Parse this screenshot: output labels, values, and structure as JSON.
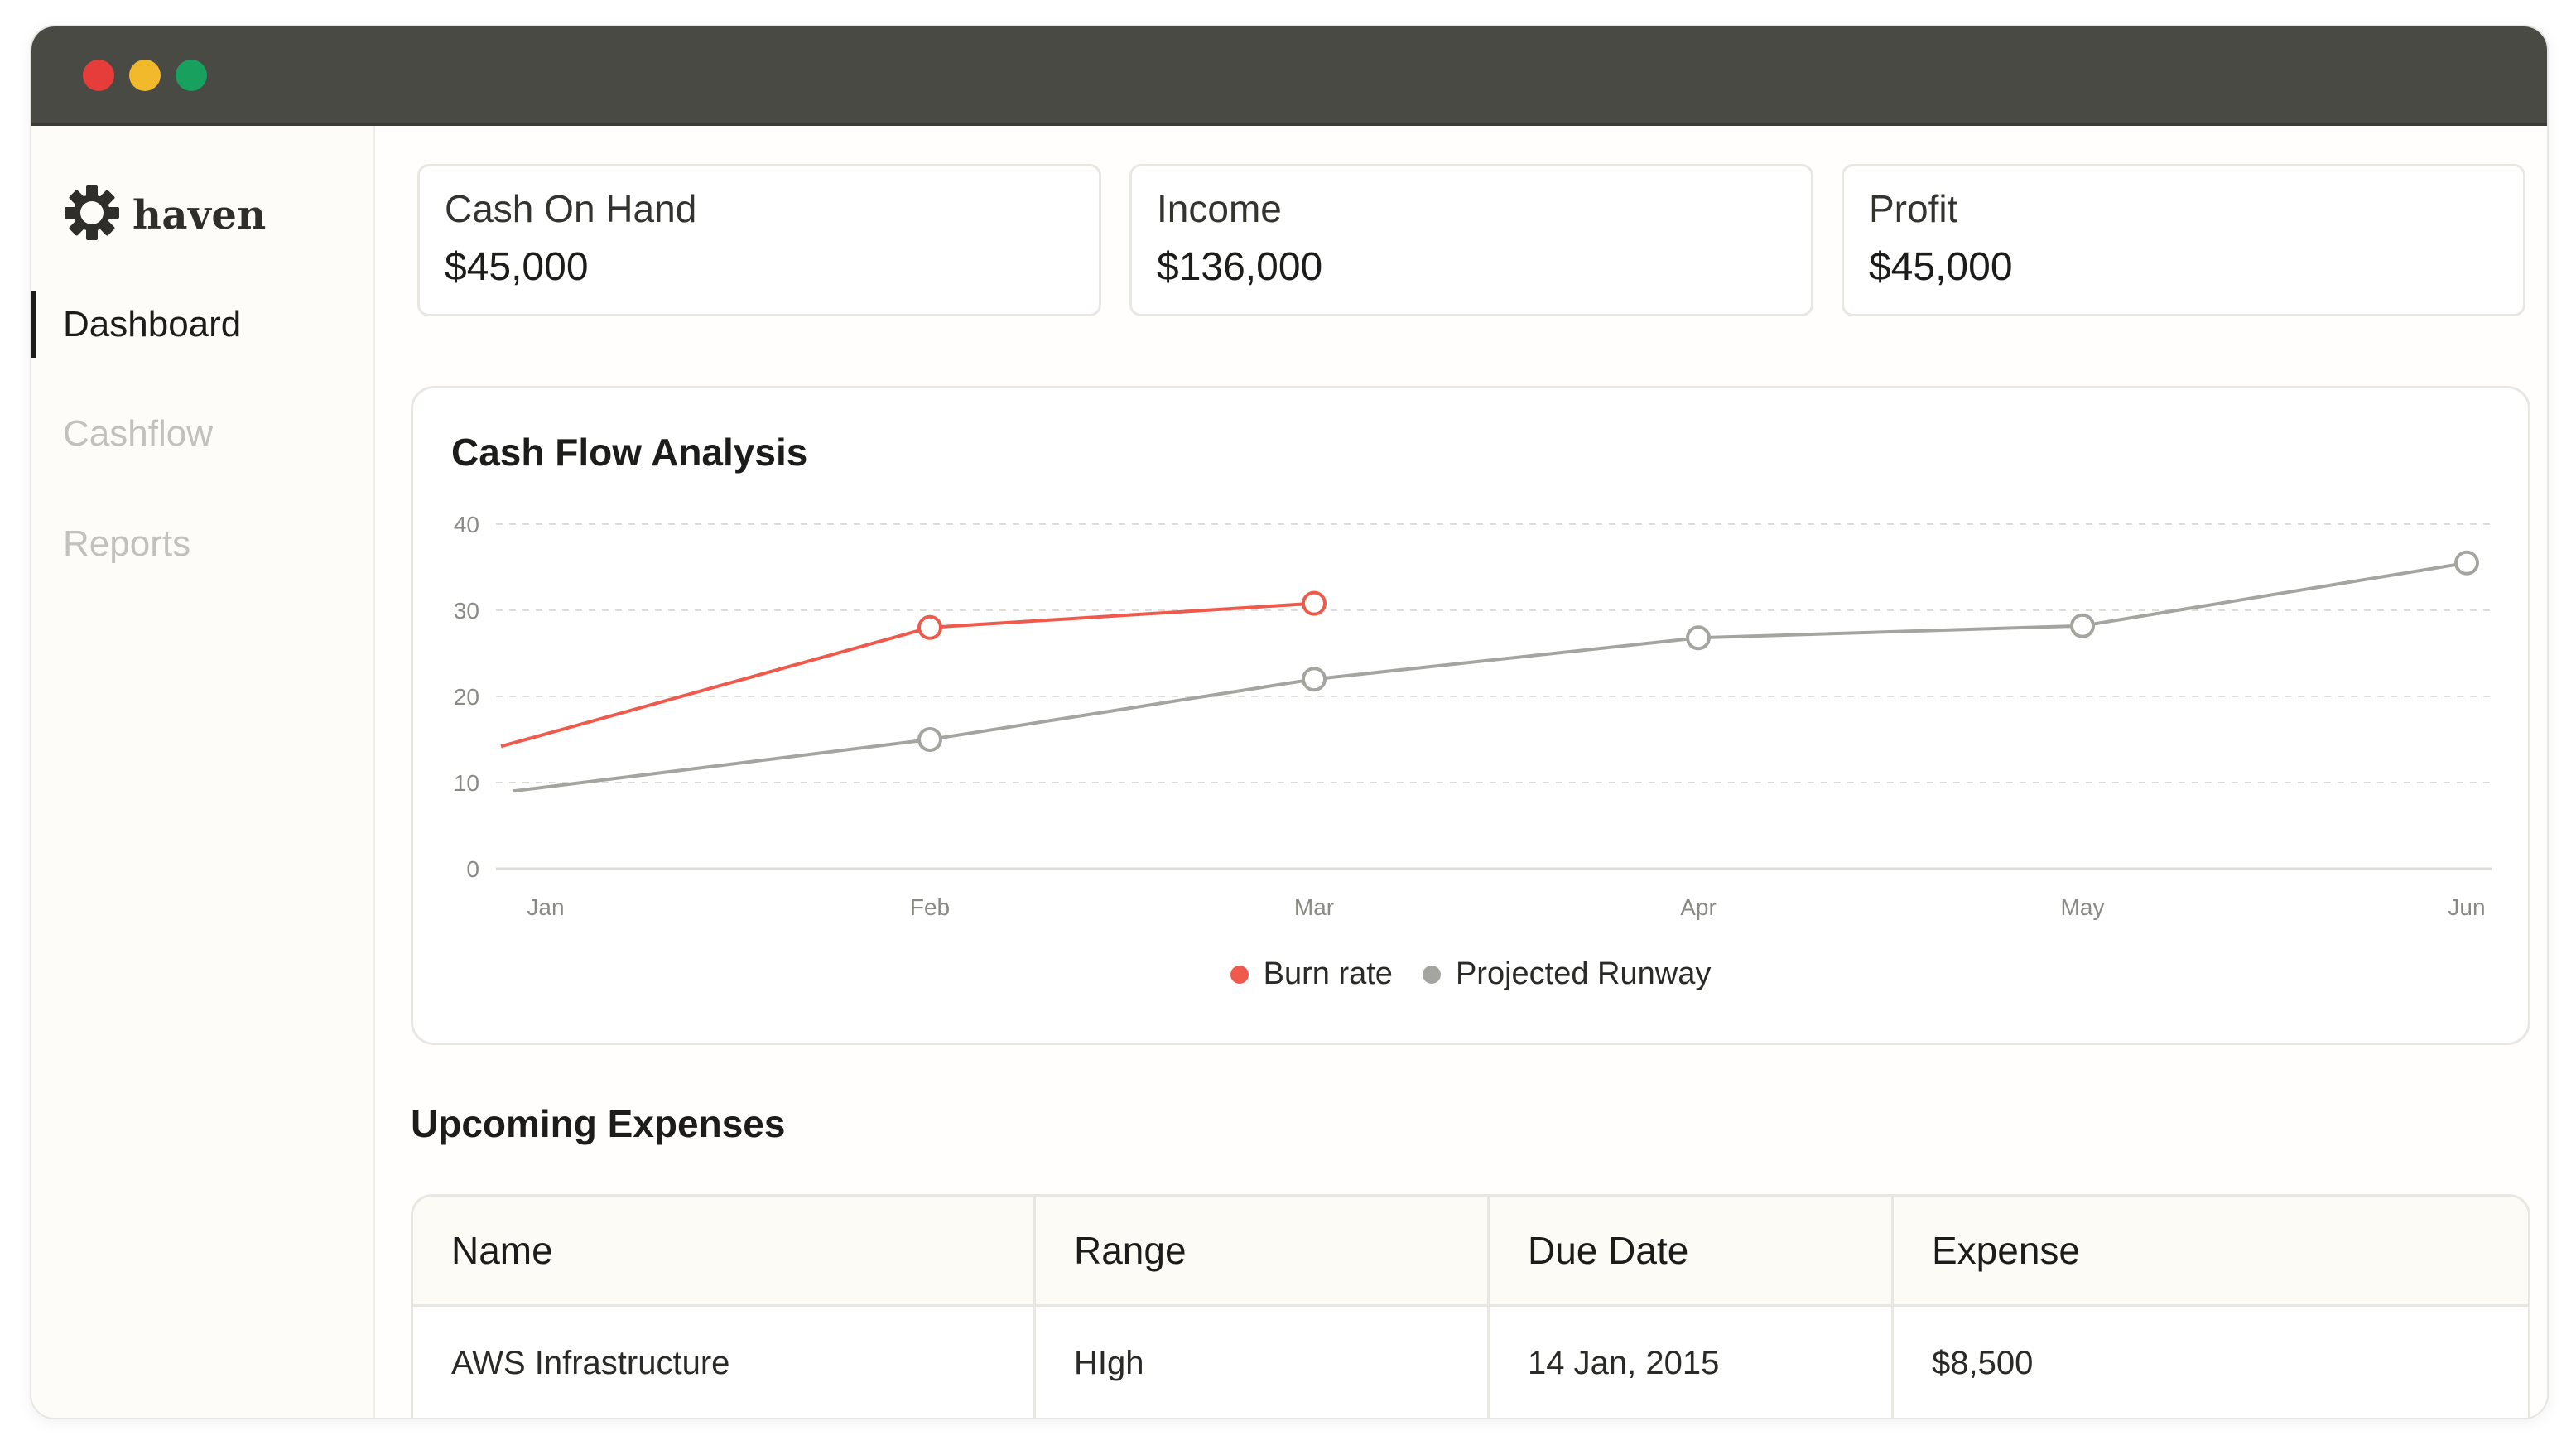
{
  "app": {
    "name": "haven"
  },
  "sidebar": {
    "items": [
      {
        "label": "Dashboard",
        "active": true
      },
      {
        "label": "Cashflow",
        "active": false
      },
      {
        "label": "Reports",
        "active": false
      }
    ]
  },
  "cards": [
    {
      "label": "Cash On Hand",
      "value": "$45,000"
    },
    {
      "label": "Income",
      "value": "$136,000"
    },
    {
      "label": "Profit",
      "value": "$45,000"
    }
  ],
  "chart_data": {
    "type": "line",
    "title": "Cash Flow Analysis",
    "categories": [
      "Jan",
      "Feb",
      "Mar",
      "Apr",
      "May",
      "Jun"
    ],
    "ylim": [
      0,
      40
    ],
    "yticks": [
      0,
      10,
      20,
      30,
      40
    ],
    "grid": true,
    "legend_position": "bottom",
    "series": [
      {
        "name": "Burn rate",
        "color": "#ef5a4c",
        "values": [
          14.2,
          28,
          30.8,
          null,
          null,
          null
        ]
      },
      {
        "name": "Projected Runway",
        "color": "#a5a5a0",
        "values": [
          9,
          15,
          22,
          26.8,
          28.2,
          35.5
        ]
      }
    ]
  },
  "expenses": {
    "title": "Upcoming Expenses",
    "columns": [
      "Name",
      "Range",
      "Due Date",
      "Expense"
    ],
    "rows": [
      [
        "AWS Infrastructure",
        "HIgh",
        "14 Jan, 2015",
        "$8,500"
      ]
    ]
  },
  "colors": {
    "titlebar": "#4a4a44",
    "close": "#e63d3a",
    "minimize": "#f3b92c",
    "maximize": "#17a05e",
    "accent_red": "#ef5a4c",
    "muted_gray": "#a5a5a0"
  },
  "icons": [
    "window-close-icon",
    "window-minimize-icon",
    "window-maximize-icon",
    "haven-logo-icon"
  ]
}
